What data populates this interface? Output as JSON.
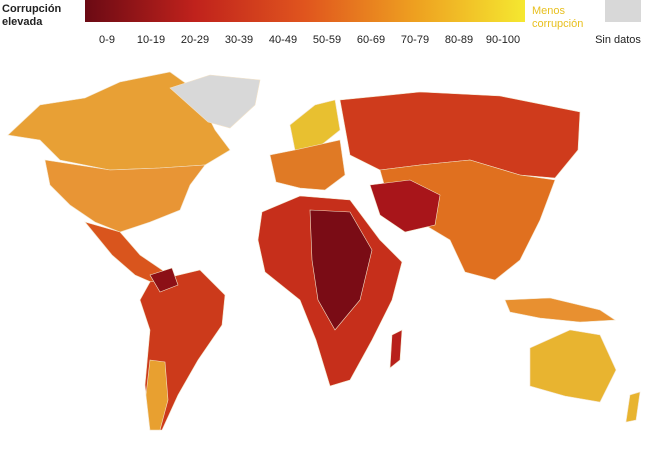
{
  "legend": {
    "high_label": [
      "Corrupción",
      "elevada"
    ],
    "low_label": [
      "Menos",
      "corrupción"
    ],
    "no_data_label": "Sin datos",
    "bins": [
      "0-9",
      "10-19",
      "20-29",
      "30-39",
      "40-49",
      "50-59",
      "60-69",
      "70-79",
      "80-89",
      "90-100"
    ]
  }
}
